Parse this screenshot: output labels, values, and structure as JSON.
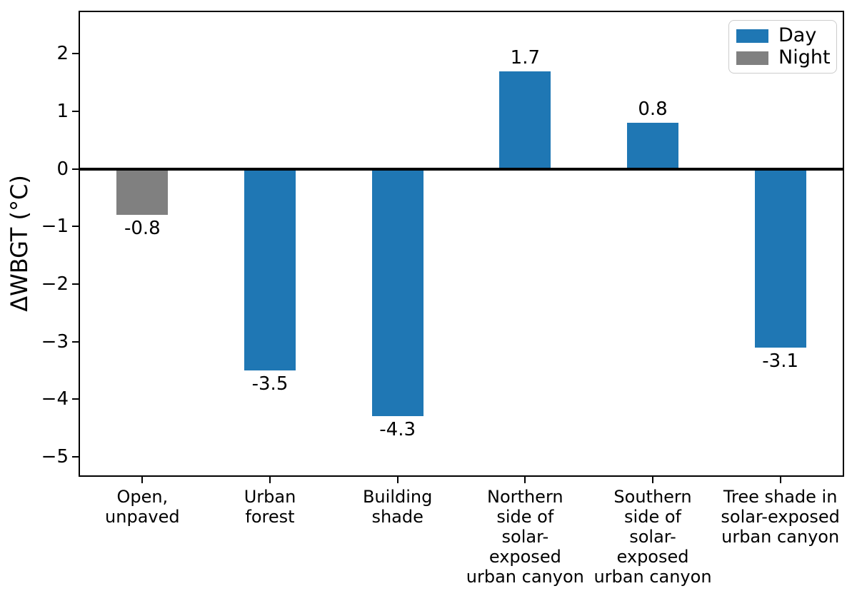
{
  "chart_data": {
    "type": "bar",
    "title": "",
    "xlabel": "",
    "ylabel": "ΔWBGT (°C)",
    "ylim": [
      -5.35,
      2.75
    ],
    "grid": false,
    "zero_line": true,
    "yticks": [
      {
        "value": 2,
        "label": "2"
      },
      {
        "value": 1,
        "label": "1"
      },
      {
        "value": 0,
        "label": "0"
      },
      {
        "value": -1,
        "label": "−1"
      },
      {
        "value": -2,
        "label": "−2"
      },
      {
        "value": -3,
        "label": "−3"
      },
      {
        "value": -4,
        "label": "−4"
      },
      {
        "value": -5,
        "label": "−5"
      }
    ],
    "categories": [
      "Open, unpaved",
      "Urban forest",
      "Building shade",
      "Northern side of solar-exposed urban canyon",
      "Southern side of solar-exposed urban canyon",
      "Tree shade in solar-exposed urban canyon"
    ],
    "bars": [
      {
        "category": "Open, unpaved",
        "category_lines": [
          "Open,",
          "unpaved"
        ],
        "value": -0.8,
        "label": "-0.8",
        "series": "Night"
      },
      {
        "category": "Urban forest",
        "category_lines": [
          "Urban",
          "forest"
        ],
        "value": -3.5,
        "label": "-3.5",
        "series": "Day"
      },
      {
        "category": "Building shade",
        "category_lines": [
          "Building",
          "shade"
        ],
        "value": -4.3,
        "label": "-4.3",
        "series": "Day"
      },
      {
        "category": "Northern side of solar-exposed urban canyon",
        "category_lines": [
          "Northern",
          "side of",
          "solar-",
          "exposed",
          "urban canyon"
        ],
        "value": 1.7,
        "label": "1.7",
        "series": "Day"
      },
      {
        "category": "Southern side of solar-exposed urban canyon",
        "category_lines": [
          "Southern",
          "side of",
          "solar-",
          "exposed",
          "urban canyon"
        ],
        "value": 0.8,
        "label": "0.8",
        "series": "Day"
      },
      {
        "category": "Tree shade in solar-exposed urban canyon",
        "category_lines": [
          "Tree shade in",
          "solar-exposed",
          "urban canyon"
        ],
        "value": -3.1,
        "label": "-3.1",
        "series": "Day"
      }
    ],
    "legend": {
      "position": "upper right",
      "entries": [
        {
          "label": "Day",
          "color": "#1f77b4"
        },
        {
          "label": "Night",
          "color": "#808080"
        }
      ]
    },
    "colors": {
      "day": "#1f77b4",
      "night": "#808080",
      "axis": "#000000",
      "legend_border": "#cccccc",
      "background": "#ffffff"
    }
  }
}
